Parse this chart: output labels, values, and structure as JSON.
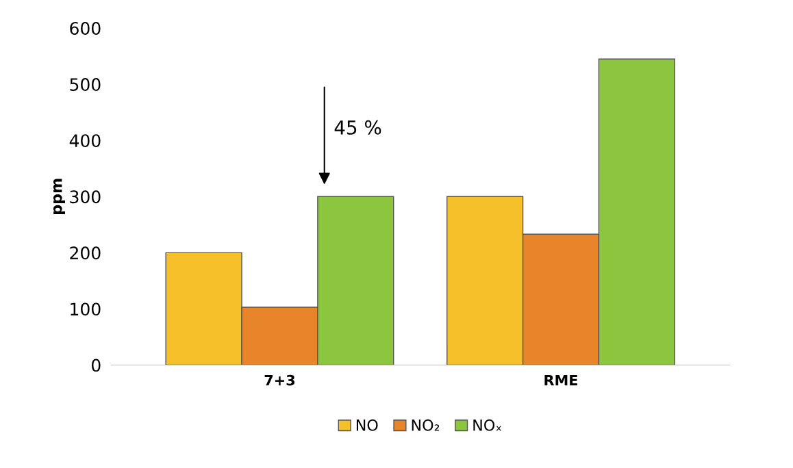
{
  "chart_data": {
    "type": "bar",
    "ylabel": "ppm",
    "categories": [
      "7+3",
      "RME"
    ],
    "series": [
      {
        "name": "NO",
        "color": "#f5c02a",
        "values": [
          200,
          300
        ]
      },
      {
        "name": "NO₂",
        "color": "#e8852a",
        "values": [
          103,
          233
        ]
      },
      {
        "name": "NOₓ",
        "color": "#8cc63e",
        "values": [
          300,
          545
        ]
      }
    ],
    "ylim": [
      0,
      600
    ],
    "yticks": [
      0,
      100,
      200,
      300,
      400,
      500,
      600
    ],
    "annotations": [
      "45 %"
    ],
    "grid": false,
    "legend": "bottom"
  }
}
